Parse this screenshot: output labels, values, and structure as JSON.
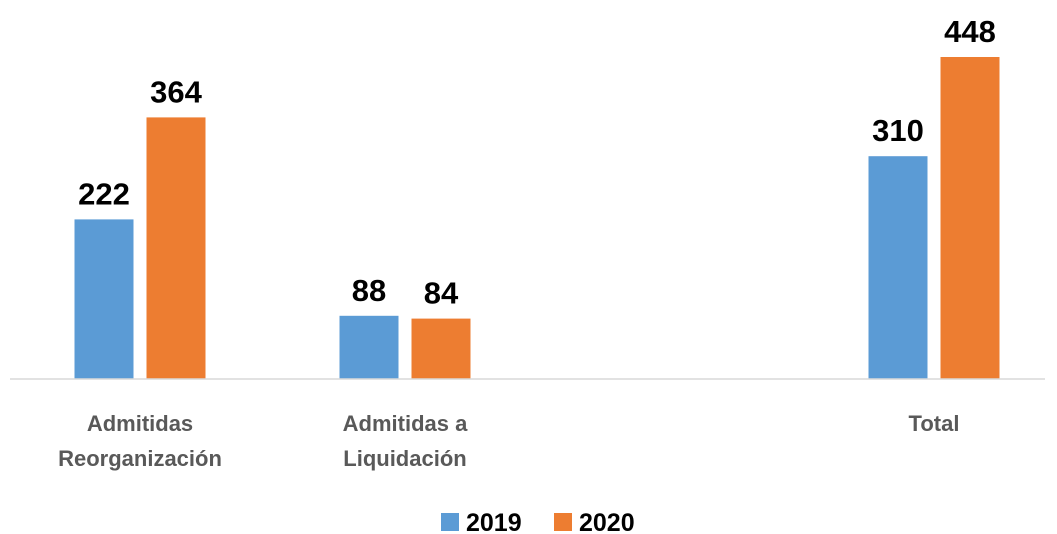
{
  "chart_data": {
    "type": "bar",
    "categories": [
      [
        "Admitidas",
        "Reorganización"
      ],
      [
        "Admitidas a",
        "Liquidación"
      ],
      [
        "Total"
      ]
    ],
    "series": [
      {
        "name": "2019",
        "color": "#5B9BD5",
        "values": [
          222,
          88,
          310
        ]
      },
      {
        "name": "2020",
        "color": "#ED7D31",
        "values": [
          364,
          84,
          448
        ]
      }
    ],
    "data_labels": true,
    "ylim": [
      0,
      448
    ],
    "grid": false,
    "legend_position": "bottom"
  }
}
